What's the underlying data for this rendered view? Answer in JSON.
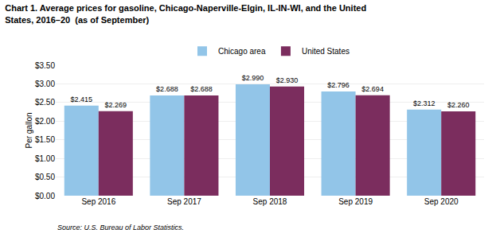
{
  "chart_data": {
    "type": "bar",
    "title": "Chart 1. Average prices for gasoline, Chicago-Naperville-Elgin, IL-IN-WI, and the United",
    "subtitle": "States, 2016–20  (as of September)",
    "ylabel": "Per gallon",
    "annotations": [
      "Source: U.S. Bureau of Labor Statistics."
    ],
    "categories": [
      "Sep 2016",
      "Sep 2017",
      "Sep 2018",
      "Sep 2019",
      "Sep 2020"
    ],
    "series": [
      {
        "name": "Chicago area",
        "color": "#92C5E8",
        "values": [
          2.415,
          2.688,
          2.99,
          2.796,
          2.312
        ],
        "value_labels": [
          "$2.415",
          "$2.688",
          "$2.990",
          "$2.796",
          "$2.312"
        ]
      },
      {
        "name": "United States",
        "color": "#7B2D5E",
        "values": [
          2.269,
          2.688,
          2.93,
          2.694,
          2.26
        ],
        "value_labels": [
          "$2.269",
          "$2.688",
          "$2.930",
          "$2.694",
          "$2.260"
        ]
      }
    ],
    "ylim": [
      0.0,
      3.5
    ],
    "yticks": [
      {
        "value": 0.0,
        "label": "$0.00"
      },
      {
        "value": 0.5,
        "label": "$0.50"
      },
      {
        "value": 1.0,
        "label": "$1.00"
      },
      {
        "value": 1.5,
        "label": "$1.50"
      },
      {
        "value": 2.0,
        "label": "$2.00"
      },
      {
        "value": 2.5,
        "label": "$2.50"
      },
      {
        "value": 3.0,
        "label": "$3.00"
      },
      {
        "value": 3.5,
        "label": "$3.50"
      }
    ],
    "grid": true,
    "legend": "top",
    "data_labels": true
  }
}
